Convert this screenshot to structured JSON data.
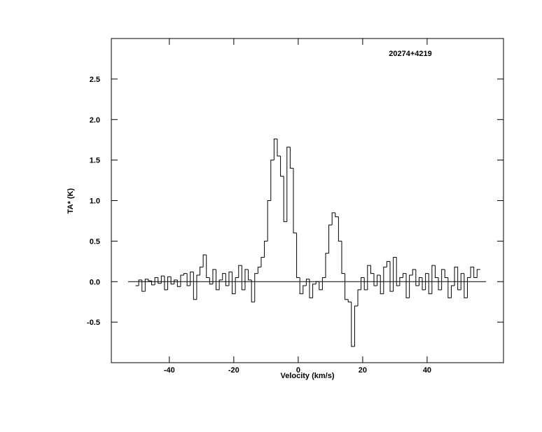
{
  "chart_data": {
    "type": "step",
    "title": "20274+4219",
    "x_label": "Velocity (km/s)",
    "y_label": "TA* (K)",
    "color": "#000000",
    "xlim": [
      -58,
      63.7
    ],
    "ylim": [
      -1,
      3
    ],
    "xticks": [
      -40,
      -20,
      0,
      20,
      40
    ],
    "yticks": [
      -0.5,
      {
        "value": 0,
        "label": "0.0"
      },
      0.5,
      {
        "value": 1,
        "label": "1.0"
      },
      1.5,
      {
        "value": 2,
        "label": "2.0"
      },
      2.5
    ],
    "baseline": {
      "y": 0,
      "x": [
        -52.8,
        58.3
      ]
    },
    "x": [
      -50,
      -49,
      -48,
      -47,
      -46,
      -45,
      -44,
      -43,
      -42,
      -41,
      -40,
      -39,
      -38,
      -37,
      -36,
      -35,
      -34,
      -33,
      -32,
      -31,
      -30,
      -29,
      -28,
      -27,
      -26,
      -25,
      -24,
      -23,
      -22,
      -21,
      -20,
      -19,
      -18,
      -17,
      -16,
      -15,
      -14,
      -13,
      -12,
      -11,
      -10,
      -9,
      -8,
      -7,
      -6,
      -5,
      -4,
      -3,
      -2,
      -1,
      0,
      1,
      2,
      3,
      4,
      5,
      6,
      7,
      8,
      9,
      10,
      11,
      12,
      13,
      14,
      15,
      16,
      17,
      18,
      19,
      20,
      21,
      22,
      23,
      24,
      25,
      26,
      27,
      28,
      29,
      30,
      31,
      32,
      33,
      34,
      35,
      36,
      37,
      38,
      39,
      40,
      41,
      42,
      43,
      44,
      45,
      46,
      47,
      48,
      49,
      50,
      51,
      52,
      53,
      54,
      55,
      56
    ],
    "values": [
      -0.05,
      0.02,
      -0.12,
      0.03,
      0.01,
      -0.04,
      0.05,
      -0.02,
      0.07,
      -0.1,
      0.06,
      -0.03,
      0.02,
      -0.06,
      0.08,
      0.1,
      -0.05,
      0.12,
      -0.22,
      0.08,
      0.18,
      0.33,
      0.05,
      -0.03,
      0.15,
      -0.1,
      0.02,
      0.1,
      -0.05,
      0.12,
      -0.15,
      0.05,
      0.2,
      -0.1,
      0.15,
      0.02,
      -0.25,
      0.1,
      0.18,
      0.3,
      0.5,
      1.0,
      1.5,
      1.76,
      1.55,
      1.3,
      0.74,
      1.66,
      1.4,
      0.6,
      0.05,
      -0.15,
      -0.05,
      0.03,
      -0.2,
      -0.03,
      0.0,
      -0.1,
      0.05,
      0.35,
      0.7,
      0.85,
      0.8,
      0.5,
      0.1,
      -0.22,
      -0.25,
      -0.8,
      -0.3,
      -0.1,
      0.05,
      -0.1,
      0.2,
      0.1,
      -0.05,
      0.08,
      -0.15,
      0.18,
      0.25,
      -0.12,
      0.3,
      -0.05,
      0.05,
      0.1,
      -0.2,
      0.08,
      0.15,
      -0.05,
      0.05,
      -0.1,
      0.1,
      -0.15,
      0.2,
      0.05,
      -0.1,
      0.15,
      0.05,
      -0.2,
      -0.05,
      0.18,
      -0.1,
      0.1,
      -0.2,
      0.05,
      0.18,
      0.05,
      0.15
    ]
  }
}
